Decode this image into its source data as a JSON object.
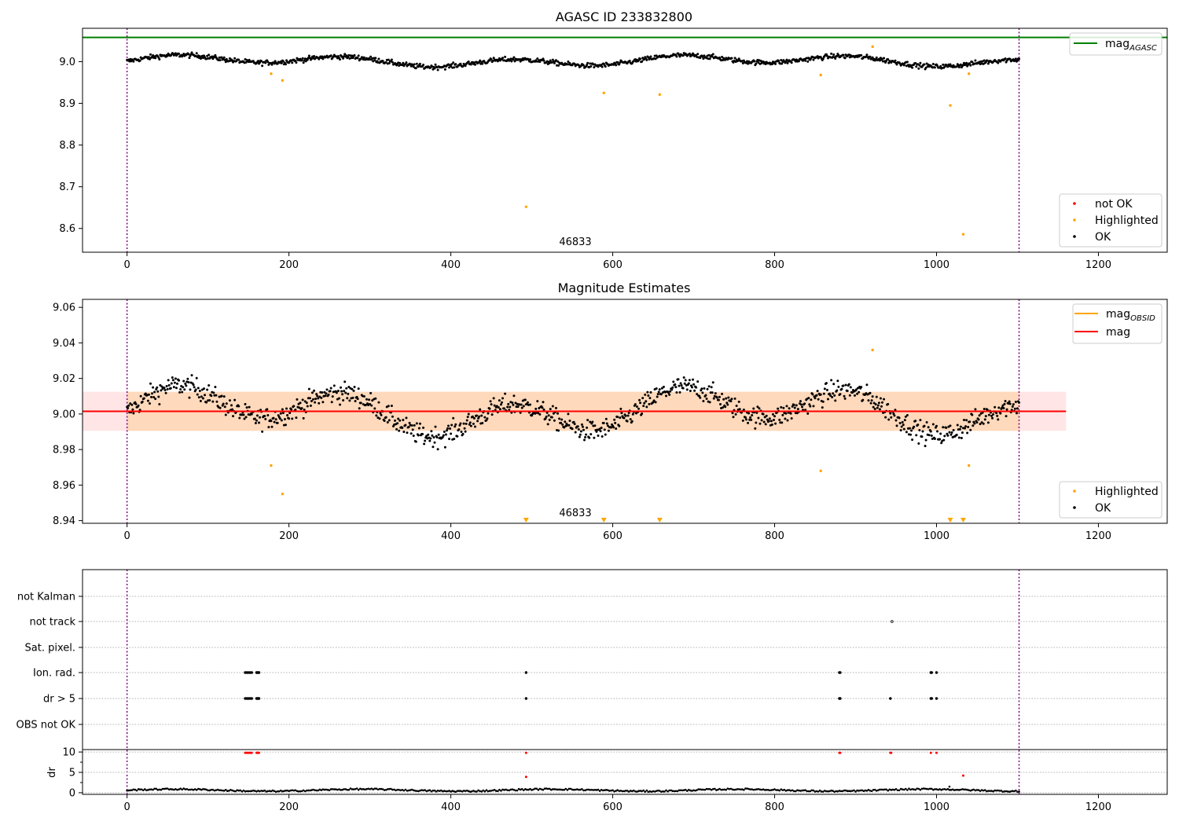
{
  "chart_data": [
    {
      "type": "scatter",
      "title": "AGASC ID 233832800",
      "annotation": "46833",
      "xlim": [
        -55,
        1285
      ],
      "ylim": [
        8.543,
        9.08
      ],
      "xticks": [
        0,
        200,
        400,
        600,
        800,
        1000,
        1200
      ],
      "yticks": [
        8.6,
        8.7,
        8.8,
        8.9,
        9.0
      ],
      "ytick_labels": [
        "8.6",
        "8.7",
        "8.8",
        "8.9",
        "9.0"
      ],
      "grid": false,
      "vlines": [
        0,
        1102
      ],
      "hlines": [
        {
          "name": "mag_AGASC",
          "y": 9.058,
          "color": "#008000"
        }
      ],
      "legends": [
        {
          "position": "upper-right",
          "entries": [
            {
              "label": "mag",
              "sub": "AGASC",
              "kind": "line",
              "color": "#008000"
            }
          ]
        },
        {
          "position": "lower-right",
          "entries": [
            {
              "label": "not OK",
              "kind": "point",
              "color": "#ff0000"
            },
            {
              "label": "Highlighted",
              "kind": "point",
              "color": "#ffa500"
            },
            {
              "label": "OK",
              "kind": "point",
              "color": "#000000"
            }
          ]
        }
      ],
      "series": [
        {
          "name": "OK",
          "color": "#000000",
          "points": "see ok_series",
          "x_range": [
            0,
            1102
          ],
          "baseline": 9.0,
          "spread": 0.008
        },
        {
          "name": "Highlighted",
          "color": "#ffa500",
          "points": [
            [
              178,
              8.971
            ],
            [
              192,
              8.955
            ],
            [
              493,
              8.652
            ],
            [
              589,
              8.925
            ],
            [
              658,
              8.921
            ],
            [
              857,
              8.968
            ],
            [
              921,
              9.036
            ],
            [
              1017,
              8.895
            ],
            [
              1033,
              8.586
            ],
            [
              1040,
              8.971
            ]
          ]
        }
      ]
    },
    {
      "type": "scatter",
      "title": "Magnitude Estimates",
      "annotation": "46833",
      "xlim": [
        -55,
        1285
      ],
      "ylim": [
        8.9385,
        9.0645
      ],
      "xticks": [
        0,
        200,
        400,
        600,
        800,
        1000,
        1200
      ],
      "yticks": [
        8.94,
        8.96,
        8.98,
        9.0,
        9.02,
        9.04,
        9.06
      ],
      "ytick_labels": [
        "8.94",
        "8.96",
        "8.98",
        "9.00",
        "9.02",
        "9.04",
        "9.06"
      ],
      "grid": false,
      "vlines": [
        0,
        1102
      ],
      "mag_obsid": {
        "y": 9.0015,
        "x_range": [
          0,
          1102
        ],
        "band": [
          8.9905,
          9.0125
        ],
        "color": "#ffa500"
      },
      "mag": {
        "y": 9.0015,
        "x_range": [
          -55,
          1160
        ],
        "band": [
          8.9905,
          9.0125
        ],
        "color": "#ff0000"
      },
      "legends": [
        {
          "position": "upper-right",
          "entries": [
            {
              "label": "mag",
              "sub": "OBSID",
              "kind": "line",
              "color": "#ffa500"
            },
            {
              "label": "mag",
              "sub": "",
              "kind": "line",
              "color": "#ff0000"
            }
          ]
        },
        {
          "position": "lower-right",
          "entries": [
            {
              "label": "Highlighted",
              "kind": "point",
              "color": "#ffa500"
            },
            {
              "label": "OK",
              "kind": "point",
              "color": "#000000"
            }
          ]
        }
      ],
      "series": [
        {
          "name": "OK",
          "color": "#000000",
          "points": "see ok_series"
        },
        {
          "name": "Highlighted",
          "color": "#ffa500",
          "points": [
            [
              178,
              8.971
            ],
            [
              192,
              8.955
            ],
            [
              857,
              8.968
            ],
            [
              921,
              9.036
            ],
            [
              1040,
              8.971
            ]
          ]
        },
        {
          "name": "Highlighted (off-scale)",
          "color": "#ffa500",
          "marker": "triangle-down",
          "x": [
            493,
            589,
            658,
            1017,
            1033
          ]
        }
      ]
    },
    {
      "type": "scatter",
      "title": "",
      "xlim": [
        -55,
        1285
      ],
      "xticks": [
        0,
        200,
        400,
        600,
        800,
        1000,
        1200
      ],
      "vlines": [
        0,
        1102
      ],
      "flag_rows": [
        "not Kalman",
        "not track",
        "Sat. pixel.",
        "Ion. rad.",
        "dr > 5",
        "OBS not OK"
      ],
      "flags": {
        "not Kalman": [],
        "not track": [
          945
        ],
        "Sat. pixel.": [],
        "Ion. rad.": [
          146,
          148,
          150,
          152,
          154,
          160,
          161,
          162,
          163,
          493,
          880,
          881,
          993,
          994,
          1000
        ],
        "dr > 5": [
          146,
          148,
          150,
          152,
          154,
          160,
          161,
          162,
          163,
          493,
          880,
          881,
          943,
          993,
          994,
          1000
        ],
        "OBS not OK": []
      },
      "dr": {
        "ylabel": "dr",
        "yticks": [
          0,
          5,
          10
        ],
        "ylim": [
          -0.4,
          10.6
        ],
        "outliers_red": [
          [
            146,
            9.8
          ],
          [
            148,
            9.8
          ],
          [
            150,
            9.8
          ],
          [
            152,
            9.8
          ],
          [
            154,
            9.8
          ],
          [
            160,
            9.8
          ],
          [
            161,
            9.8
          ],
          [
            162,
            9.8
          ],
          [
            163,
            9.8
          ],
          [
            493,
            9.8
          ],
          [
            493,
            3.9
          ],
          [
            880,
            9.8
          ],
          [
            881,
            9.8
          ],
          [
            943,
            9.8
          ],
          [
            944,
            9.8
          ],
          [
            993,
            9.8
          ],
          [
            1000,
            9.8
          ],
          [
            1033,
            4.2
          ]
        ],
        "outliers_black": [
          [
            1016,
            1.5
          ]
        ]
      }
    }
  ]
}
